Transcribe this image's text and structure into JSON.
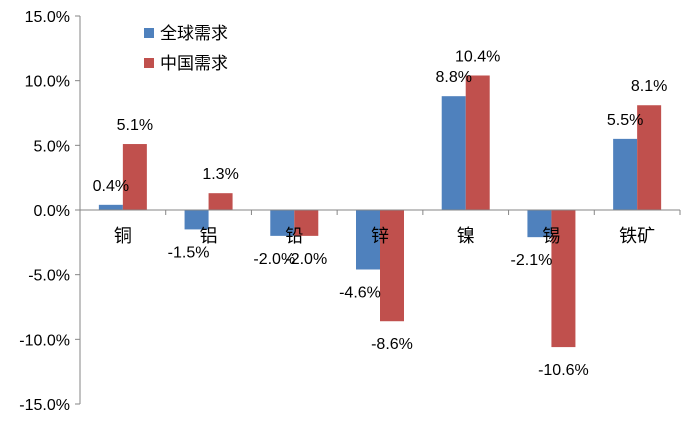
{
  "chart_data": {
    "type": "bar",
    "categories": [
      "铜",
      "铝",
      "铅",
      "锌",
      "镍",
      "锡",
      "铁矿"
    ],
    "series": [
      {
        "name": "全球需求",
        "values": [
          0.4,
          -1.5,
          -2.0,
          -4.6,
          8.8,
          -2.1,
          5.5
        ],
        "labels": [
          "0.4%",
          "-1.5%",
          "-2.0%",
          "-4.6%",
          "8.8%",
          "-2.1%",
          "5.5%"
        ],
        "color": "#4F81BD"
      },
      {
        "name": "中国需求",
        "values": [
          5.1,
          1.3,
          -2.0,
          -8.6,
          10.4,
          -10.6,
          8.1
        ],
        "labels": [
          "5.1%",
          "1.3%",
          "-2.0%",
          "-8.6%",
          "10.4%",
          "-10.6%",
          "8.1%"
        ],
        "color": "#C0504D"
      }
    ],
    "y_ticks": [
      "15.0%",
      "10.0%",
      "5.0%",
      "0.0%",
      "-5.0%",
      "-10.0%",
      "-15.0%"
    ],
    "ylim": [
      -15,
      15
    ],
    "title": "",
    "xlabel": "",
    "ylabel": "",
    "grid": false,
    "legend_position": "top-left"
  }
}
